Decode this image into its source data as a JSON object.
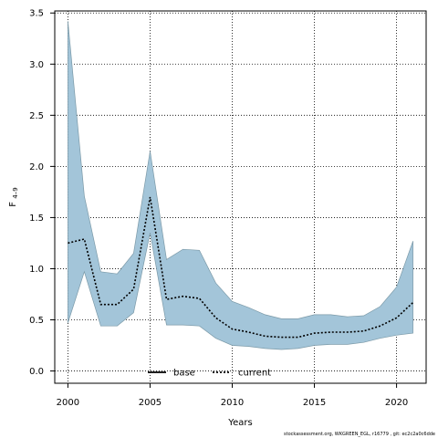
{
  "chart_data": {
    "type": "area",
    "xlabel": "Years",
    "ylabel_main": "F",
    "ylabel_sub": "4–9",
    "xlim": [
      1999.2,
      2021.8
    ],
    "ylim": [
      -0.12,
      3.52
    ],
    "x_ticks": [
      2000,
      2005,
      2010,
      2015,
      2020
    ],
    "y_ticks": [
      "0.0",
      "0.5",
      "1.0",
      "1.5",
      "2.0",
      "2.5",
      "3.0",
      "3.5"
    ],
    "grid": true,
    "legend_position": "bottom-center",
    "legend": [
      {
        "label": "base",
        "style": "solid"
      },
      {
        "label": "current",
        "style": "dotted"
      }
    ],
    "years": [
      2000,
      2001,
      2002,
      2003,
      2004,
      2005,
      2006,
      2007,
      2008,
      2009,
      2010,
      2011,
      2012,
      2013,
      2014,
      2015,
      2016,
      2017,
      2018,
      2019,
      2020,
      2021
    ],
    "series": [
      {
        "name": "current",
        "values": [
          1.25,
          1.29,
          0.65,
          0.65,
          0.8,
          1.7,
          0.7,
          0.73,
          0.71,
          0.52,
          0.41,
          0.38,
          0.34,
          0.33,
          0.33,
          0.37,
          0.38,
          0.38,
          0.39,
          0.44,
          0.52,
          0.67
        ]
      }
    ],
    "band": {
      "upper": [
        3.42,
        1.71,
        0.97,
        0.95,
        1.15,
        2.15,
        1.09,
        1.19,
        1.18,
        0.86,
        0.68,
        0.62,
        0.55,
        0.51,
        0.51,
        0.55,
        0.55,
        0.53,
        0.54,
        0.63,
        0.82,
        1.27
      ],
      "lower": [
        0.47,
        0.97,
        0.44,
        0.44,
        0.57,
        1.35,
        0.45,
        0.45,
        0.44,
        0.32,
        0.25,
        0.24,
        0.22,
        0.21,
        0.22,
        0.25,
        0.26,
        0.26,
        0.28,
        0.32,
        0.35,
        0.37
      ]
    },
    "colors": {
      "band_fill": "#a3c5d9",
      "band_stroke": "#7c9aa8",
      "line": "#000000"
    }
  },
  "footer_text": "stockassessment.org, WKGREEN_EGL, r16779 , git: ec2c2a0c6dde"
}
